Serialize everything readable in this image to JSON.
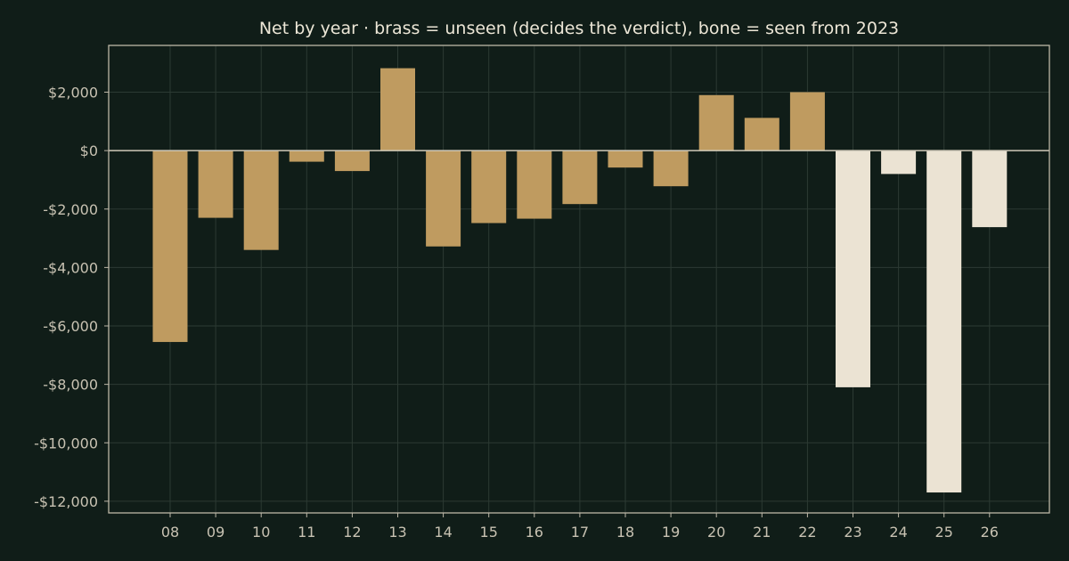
{
  "chart_data": {
    "type": "bar",
    "title": "Net by year  ·  brass = unseen (decides the verdict), bone = seen from 2023",
    "xlabel": "",
    "ylabel": "",
    "categories": [
      "08",
      "09",
      "10",
      "11",
      "12",
      "13",
      "14",
      "15",
      "16",
      "17",
      "18",
      "19",
      "20",
      "21",
      "22",
      "23",
      "24",
      "25",
      "26"
    ],
    "values": [
      -6550,
      -2300,
      -3400,
      -380,
      -700,
      2820,
      -3280,
      -2480,
      -2330,
      -1830,
      -580,
      -1220,
      1900,
      1120,
      2000,
      -8100,
      -800,
      -11700,
      -2620
    ],
    "groups": [
      "unseen",
      "unseen",
      "unseen",
      "unseen",
      "unseen",
      "unseen",
      "unseen",
      "unseen",
      "unseen",
      "unseen",
      "unseen",
      "unseen",
      "unseen",
      "unseen",
      "unseen",
      "seen",
      "seen",
      "seen",
      "seen"
    ],
    "group_colors": {
      "unseen": "#bf9b60",
      "seen": "#ebe3d3"
    },
    "ylim": [
      -12400,
      3600
    ],
    "yticks": [
      2000,
      0,
      -2000,
      -4000,
      -6000,
      -8000,
      -10000,
      -12000
    ],
    "ytick_labels": [
      "$2,000",
      "$0",
      "-$2,000",
      "-$4,000",
      "-$6,000",
      "-$8,000",
      "-$10,000",
      "-$12,000"
    ],
    "grid": true,
    "colors": {
      "background": "#101d18",
      "axis": "#bdb7a7",
      "grid": "#2c3a33",
      "zero_line": "#cfc9b8",
      "text": "#c8c2b2",
      "title": "#ece6d6"
    }
  }
}
